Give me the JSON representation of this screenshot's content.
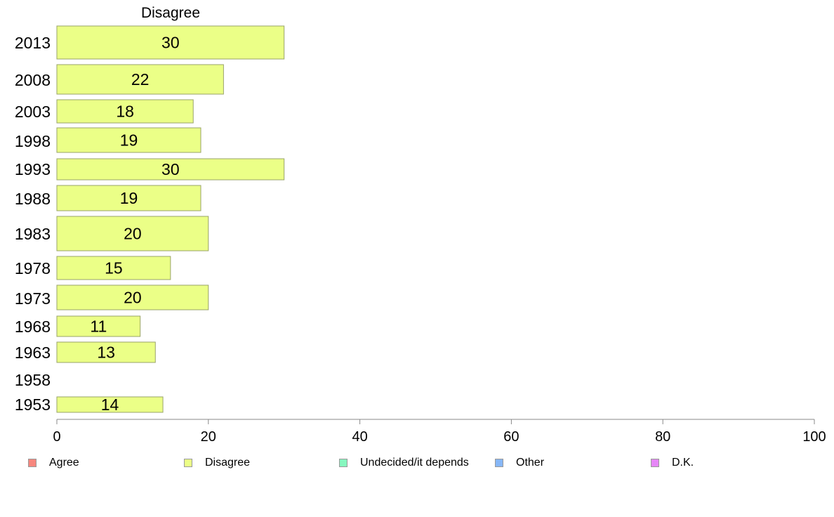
{
  "chart_data": {
    "type": "bar",
    "orientation": "horizontal",
    "title": "Disagree",
    "categories": [
      "2013",
      "2008",
      "2003",
      "1998",
      "1993",
      "1988",
      "1983",
      "1978",
      "1973",
      "1968",
      "1963",
      "1958",
      "1953"
    ],
    "series": [
      {
        "name": "Disagree",
        "values": [
          30,
          22,
          18,
          19,
          30,
          19,
          20,
          15,
          20,
          11,
          13,
          null,
          14
        ]
      }
    ],
    "xlim": [
      0,
      100
    ],
    "xticks": [
      0,
      20,
      40,
      60,
      80,
      100
    ],
    "grid": false,
    "legend_position": "bottom",
    "bar_color": "#EBFF87"
  },
  "legend": [
    {
      "label": "Agree",
      "color": "#F7877E"
    },
    {
      "label": "Disagree",
      "color": "#EBFF87"
    },
    {
      "label": "Undecided/it depends",
      "color": "#87F7BF"
    },
    {
      "label": "Other",
      "color": "#87B7F7"
    },
    {
      "label": "D.K.",
      "color": "#E687F7"
    }
  ]
}
